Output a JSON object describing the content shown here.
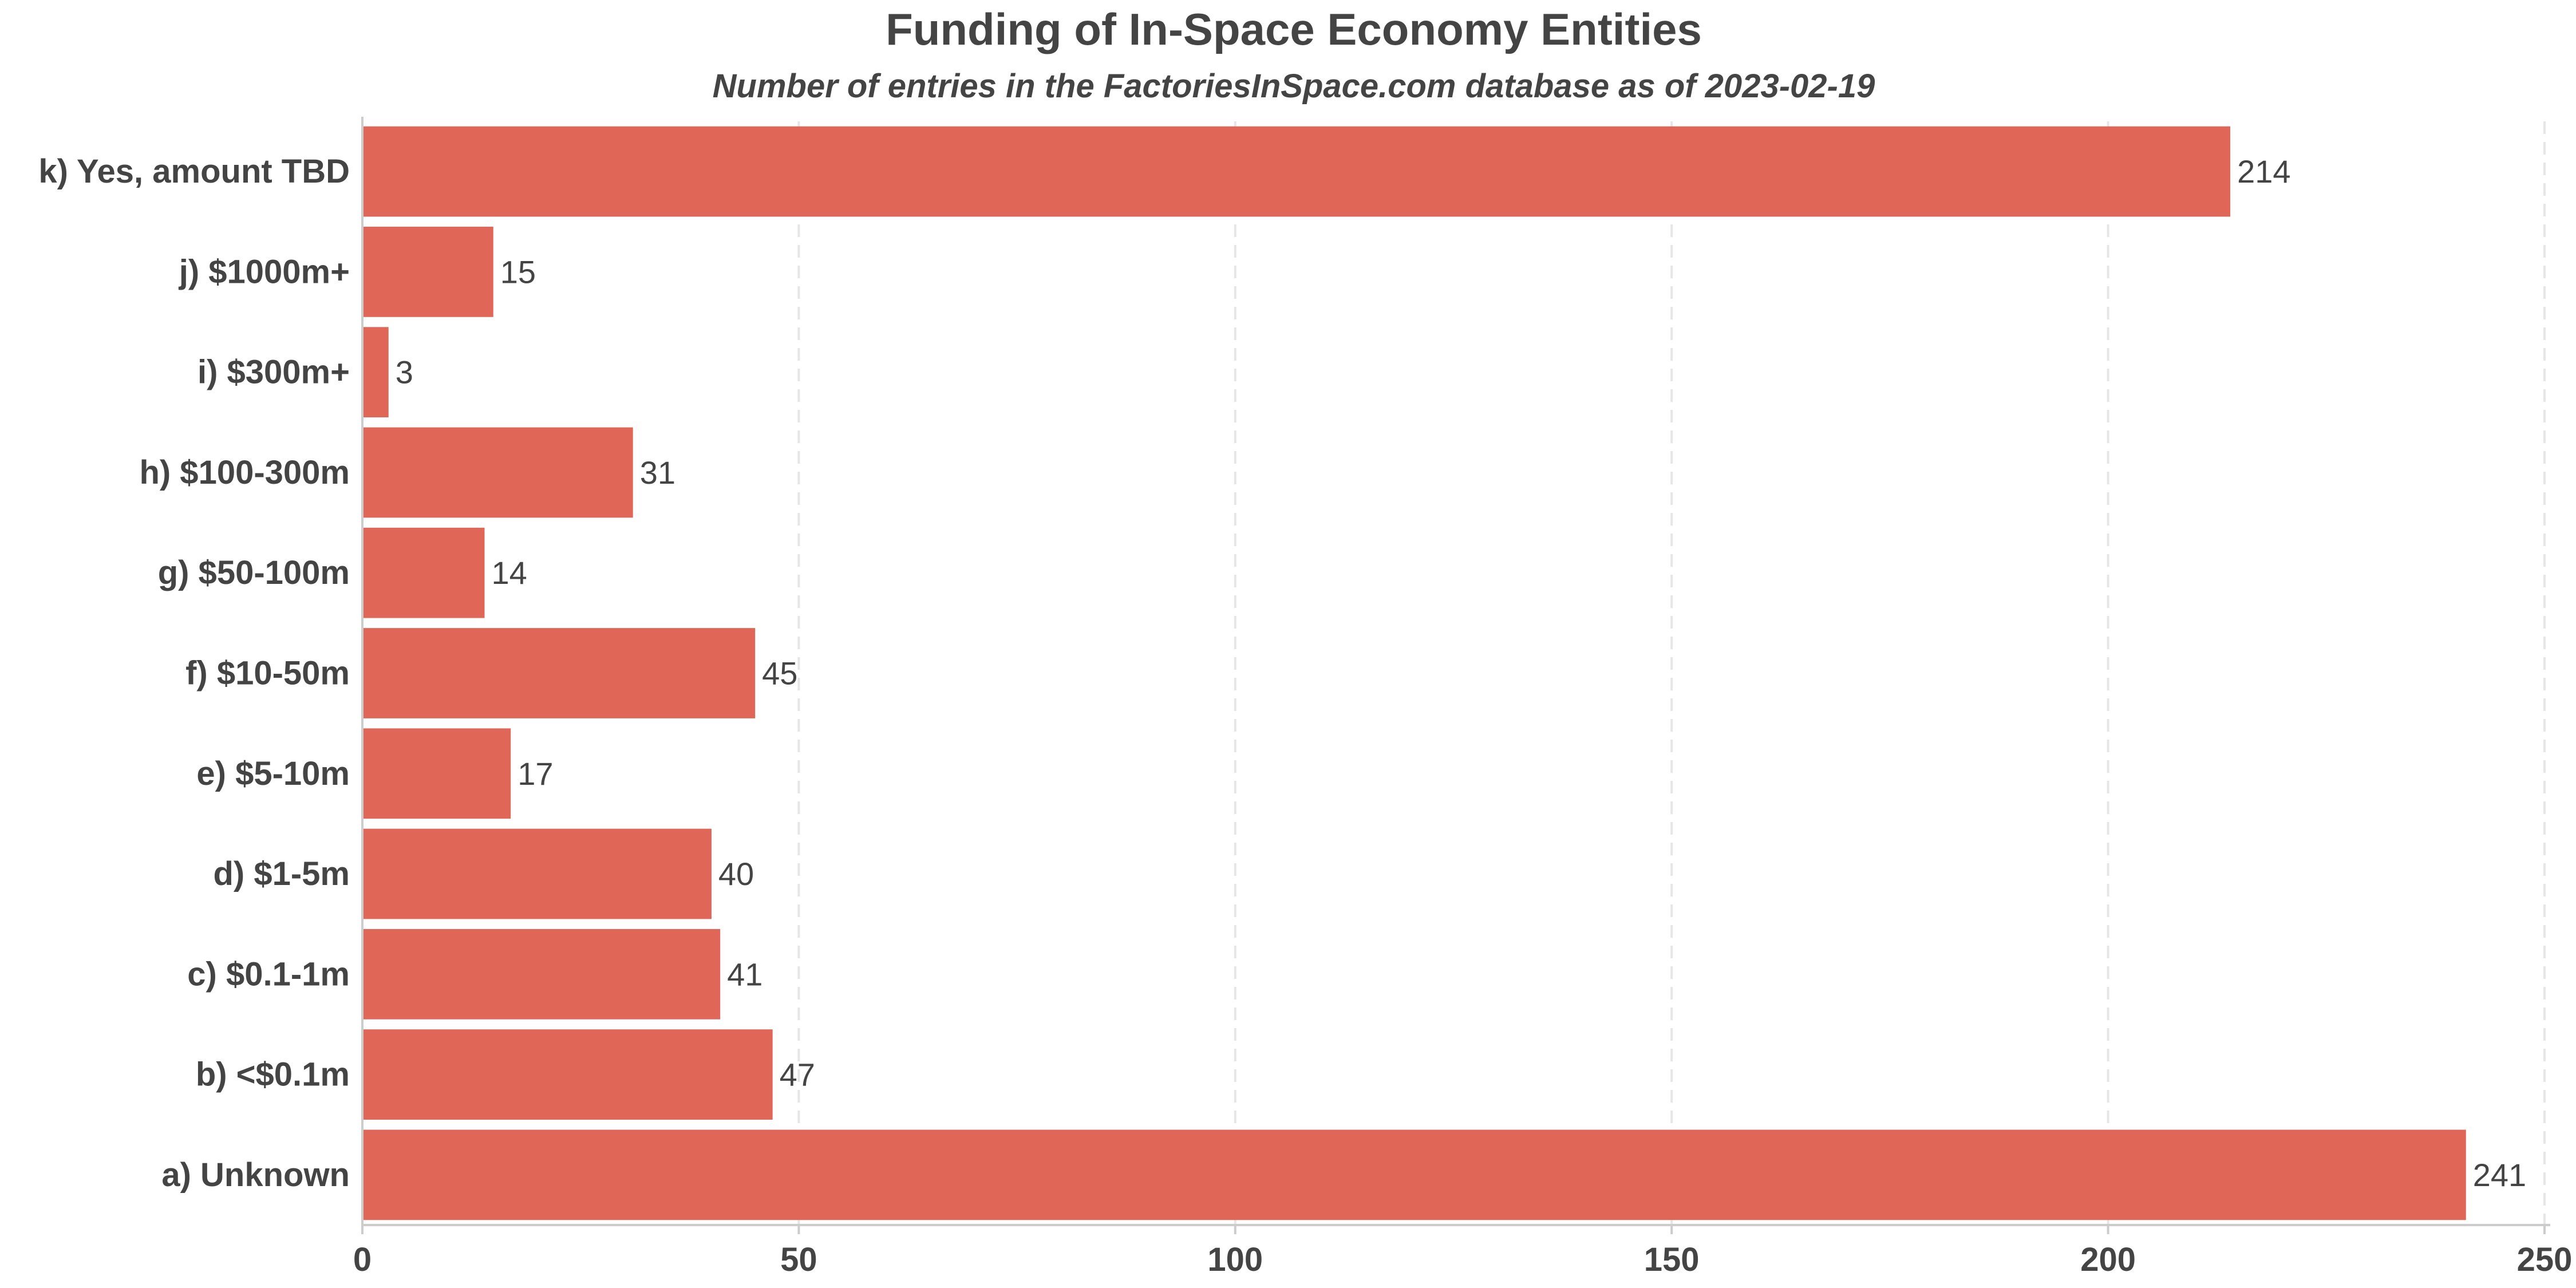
{
  "chart_data": {
    "type": "bar",
    "orientation": "horizontal",
    "title": "Funding of In-Space Economy Entities",
    "subtitle": "Number of entries in the FactoriesInSpace.com database as of 2023-02-19",
    "xlabel": "",
    "ylabel": "",
    "categories": [
      "a) Unknown",
      "b)  <$0.1m",
      "c)  $0.1-1m",
      "d)  $1-5m",
      "e)  $5-10m",
      "f)  $10-50m",
      "g)  $50-100m",
      "h)  $100-300m",
      "i)  $300m+",
      "j)  $1000m+",
      "k) Yes, amount TBD"
    ],
    "values": [
      241,
      47,
      41,
      40,
      17,
      45,
      14,
      31,
      3,
      15,
      214
    ],
    "value_labels": [
      "241",
      "47",
      "41",
      "40",
      "17",
      "45",
      "14",
      "31",
      "3",
      "15",
      "214"
    ],
    "category_order": "a at bottom, k at top",
    "xlim": [
      0,
      250
    ],
    "xticks": [
      0,
      50,
      100,
      150,
      200,
      250
    ],
    "xtick_labels": [
      "0",
      "50",
      "100",
      "150",
      "200",
      "250"
    ],
    "grid": "vertical dashed",
    "legend": "none",
    "colors": {
      "bar": "#e06758",
      "text": "#444444",
      "grid": "#e6e6e6",
      "axis": "#cccccc",
      "background": "#ffffff"
    }
  }
}
